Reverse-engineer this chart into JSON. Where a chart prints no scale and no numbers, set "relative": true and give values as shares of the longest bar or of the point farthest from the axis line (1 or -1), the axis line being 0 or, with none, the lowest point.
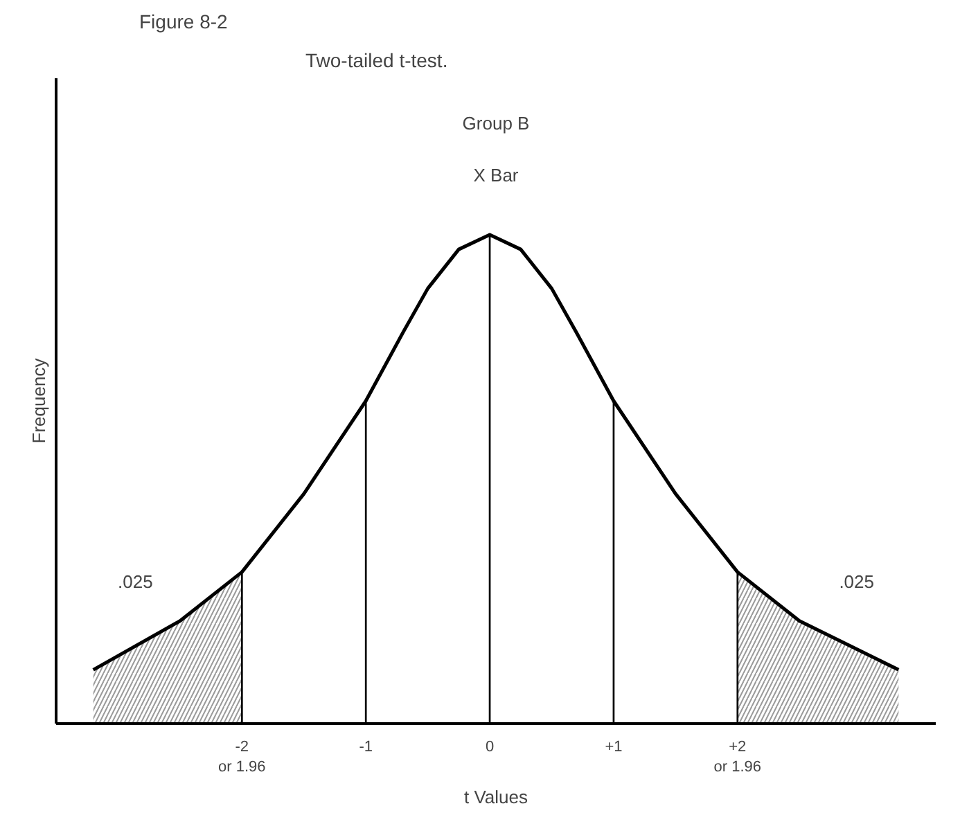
{
  "chart_data": {
    "type": "line",
    "title": "Figure 8-2",
    "subtitle": "Two-tailed t-test.",
    "xlabel": "t Values",
    "ylabel": "Frequency",
    "relative": true,
    "tick_labels": "x",
    "grid": false,
    "marker": "none",
    "line_style": "solid",
    "xlim": [
      -3.5,
      3.6
    ],
    "xticks": [
      {
        "value": -2,
        "label": "-2\nor 1.96"
      },
      -1,
      0,
      {
        "value": 1,
        "label": "+1"
      },
      {
        "value": 2,
        "label": "+2\nor 1.96"
      }
    ],
    "series": [
      {
        "color": "#000000",
        "x": [
          -3.2,
          -2.5,
          -2,
          -1.5,
          -1,
          -0.7,
          -0.5,
          -0.25,
          0,
          0.25,
          0.5,
          0.7,
          1,
          1.5,
          2,
          2.5,
          3.3
        ],
        "values": [
          0.11,
          0.21,
          0.31,
          0.47,
          0.66,
          0.8,
          0.89,
          0.97,
          1,
          0.97,
          0.89,
          0.8,
          0.66,
          0.47,
          0.31,
          0.21,
          0.11
        ]
      },
      {
        "type": "area",
        "color": "#999999",
        "x": [
          -3.2,
          -2.5,
          -2
        ],
        "values": [
          0.11,
          0.21,
          0.31
        ]
      },
      {
        "type": "area",
        "color": "#999999",
        "x": [
          2,
          2.5,
          3.3
        ],
        "values": [
          0.31,
          0.21,
          0.11
        ]
      },
      {
        "type": "bar",
        "color": "#000000",
        "x": [
          -2,
          -1,
          0,
          1,
          2
        ],
        "values": [
          0.31,
          0.66,
          1,
          0.66,
          0.31
        ]
      }
    ],
    "annotations": [
      "Group B",
      "X Bar",
      ".025",
      ".025"
    ]
  }
}
